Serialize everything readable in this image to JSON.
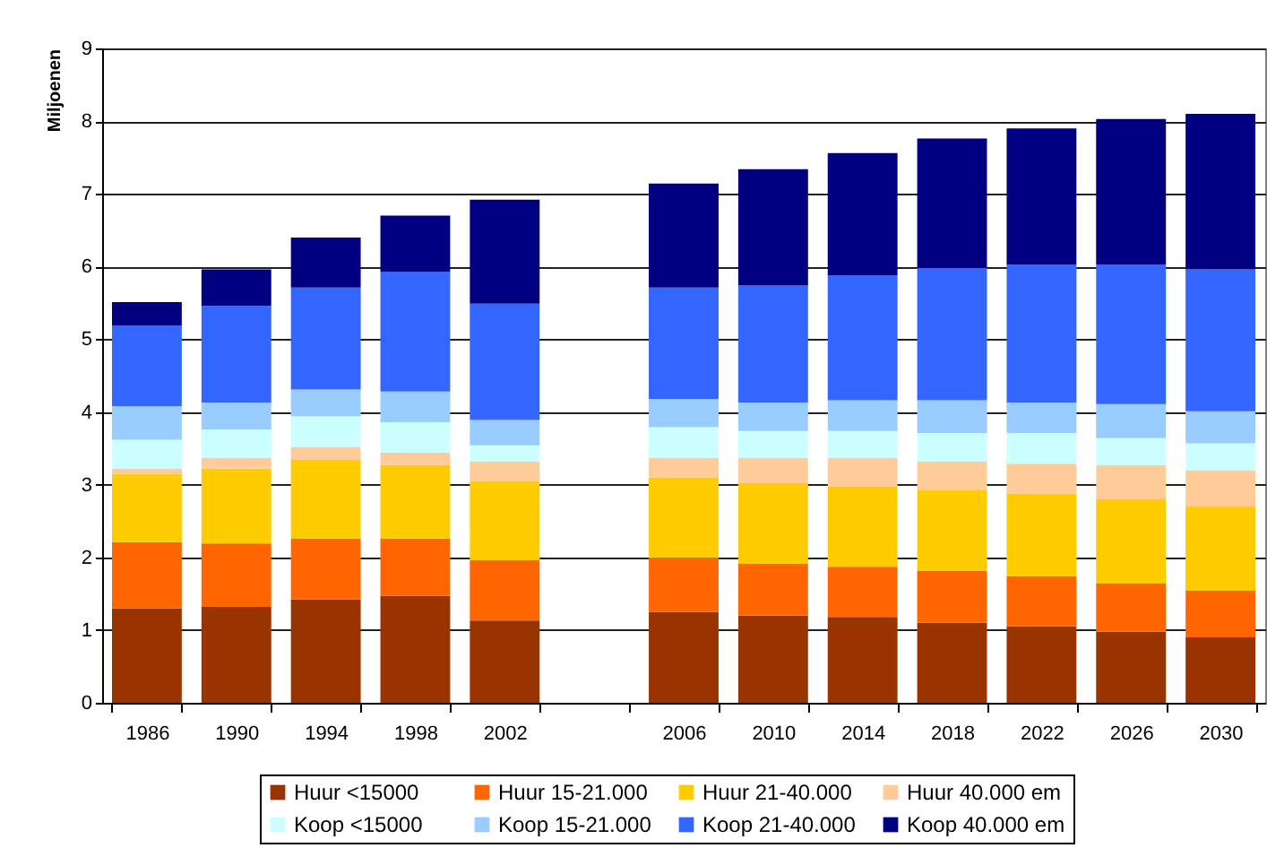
{
  "chart_data": {
    "type": "bar",
    "stacked": true,
    "ylabel": "Miljoenen",
    "categories": [
      "1986",
      "1990",
      "1994",
      "1998",
      "2002",
      null,
      "2006",
      "2010",
      "2014",
      "2018",
      "2022",
      "2026",
      "2030"
    ],
    "ylim": [
      0,
      9
    ],
    "yticks": [
      0,
      1,
      2,
      3,
      4,
      5,
      6,
      7,
      8,
      9
    ],
    "grid": "y",
    "legend": "bottom",
    "series": [
      {
        "name": "Huur <15000",
        "color": "#993300",
        "values": [
          1.3,
          1.32,
          1.42,
          1.47,
          1.13,
          null,
          1.25,
          1.2,
          1.18,
          1.1,
          1.05,
          0.98,
          0.9
        ]
      },
      {
        "name": "Huur 15-21.000",
        "color": "#ff6600",
        "values": [
          0.91,
          0.87,
          0.84,
          0.79,
          0.83,
          null,
          0.74,
          0.71,
          0.69,
          0.72,
          0.69,
          0.66,
          0.64
        ]
      },
      {
        "name": "Huur 21-40.000",
        "color": "#ffcc00",
        "values": [
          0.94,
          1.03,
          1.08,
          1.01,
          1.09,
          null,
          1.11,
          1.11,
          1.1,
          1.11,
          1.14,
          1.16,
          1.16
        ]
      },
      {
        "name": "Huur 40.000 em",
        "color": "#ffcc99",
        "values": [
          0.07,
          0.15,
          0.18,
          0.17,
          0.27,
          null,
          0.27,
          0.35,
          0.4,
          0.39,
          0.41,
          0.47,
          0.5
        ]
      },
      {
        "name": "Koop <15000",
        "color": "#ccffff",
        "values": [
          0.4,
          0.39,
          0.42,
          0.42,
          0.22,
          null,
          0.42,
          0.37,
          0.37,
          0.39,
          0.42,
          0.37,
          0.37
        ]
      },
      {
        "name": "Koop 15-21.000",
        "color": "#99ccff",
        "values": [
          0.46,
          0.37,
          0.37,
          0.42,
          0.35,
          null,
          0.39,
          0.39,
          0.42,
          0.45,
          0.42,
          0.47,
          0.44
        ]
      },
      {
        "name": "Koop 21-40.000",
        "color": "#3366ff",
        "values": [
          1.11,
          1.33,
          1.4,
          1.65,
          1.6,
          null,
          1.53,
          1.61,
          1.72,
          1.82,
          1.9,
          1.92,
          1.95
        ]
      },
      {
        "name": "Koop 40.000 em",
        "color": "#000080",
        "values": [
          0.32,
          0.5,
          0.69,
          0.77,
          1.43,
          null,
          1.43,
          1.6,
          1.68,
          1.78,
          1.87,
          2.0,
          2.14
        ]
      }
    ]
  }
}
